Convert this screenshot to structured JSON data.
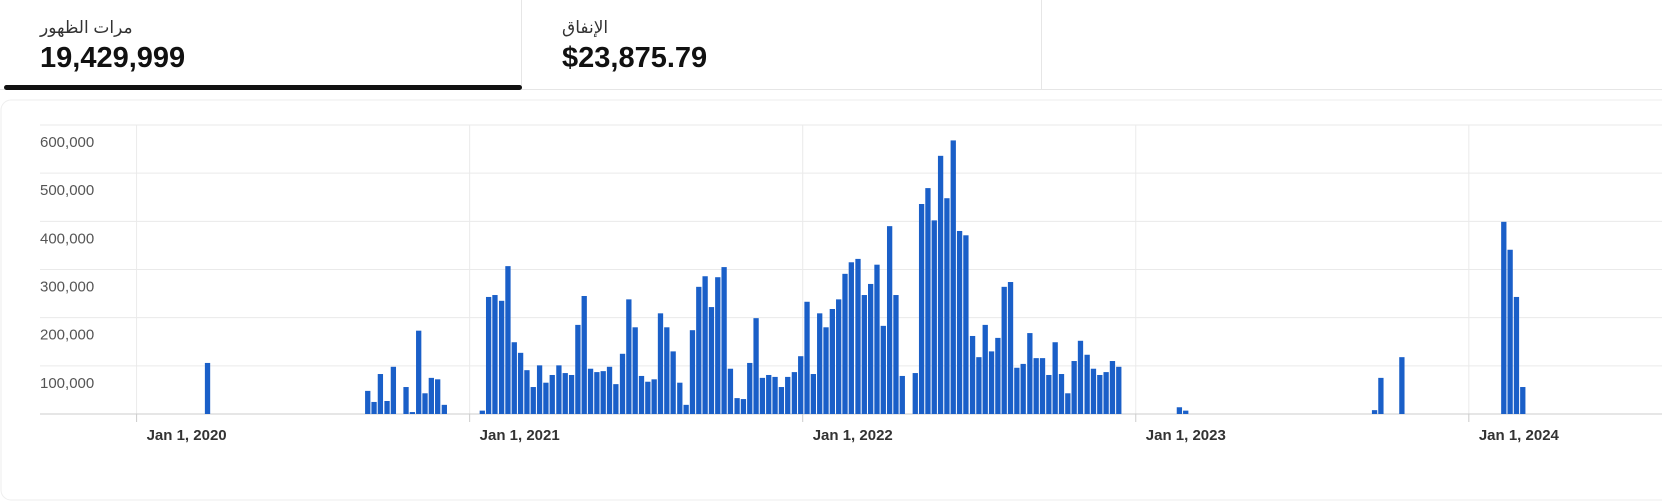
{
  "tabs": [
    {
      "label": "مرات الظهور",
      "value": "19,429,999"
    },
    {
      "label": "الإنفاق",
      "value": "$23,875.79"
    }
  ],
  "chart_data": {
    "type": "bar",
    "color": "#1a5fc8",
    "grid": true,
    "xlim": [
      2019.71,
      2024.58
    ],
    "xticks": [
      {
        "value": 2020,
        "label": "Jan 1, 2020"
      },
      {
        "value": 2021,
        "label": "Jan 1, 2021"
      },
      {
        "value": 2022,
        "label": "Jan 1, 2022"
      },
      {
        "value": 2023,
        "label": "Jan 1, 2023"
      },
      {
        "value": 2024,
        "label": "Jan 1, 2024"
      }
    ],
    "ylim": [
      0,
      600000
    ],
    "yticks": [
      {
        "value": 100000,
        "label": "100,000"
      },
      {
        "value": 200000,
        "label": "200,000"
      },
      {
        "value": 300000,
        "label": "300,000"
      },
      {
        "value": 400000,
        "label": "400,000"
      },
      {
        "value": 500000,
        "label": "500,000"
      },
      {
        "value": 600000,
        "label": "600,000"
      }
    ],
    "x": [
      2020.213,
      2020.694,
      2020.713,
      2020.732,
      2020.752,
      2020.771,
      2020.809,
      2020.828,
      2020.847,
      2020.866,
      2020.885,
      2020.904,
      2020.924,
      2021.038,
      2021.057,
      2021.076,
      2021.096,
      2021.115,
      2021.134,
      2021.153,
      2021.172,
      2021.191,
      2021.21,
      2021.229,
      2021.248,
      2021.268,
      2021.287,
      2021.306,
      2021.325,
      2021.344,
      2021.363,
      2021.382,
      2021.401,
      2021.42,
      2021.439,
      2021.459,
      2021.478,
      2021.497,
      2021.516,
      2021.535,
      2021.554,
      2021.573,
      2021.592,
      2021.611,
      2021.631,
      2021.65,
      2021.669,
      2021.688,
      2021.707,
      2021.726,
      2021.745,
      2021.764,
      2021.783,
      2021.803,
      2021.822,
      2021.841,
      2021.86,
      2021.879,
      2021.898,
      2021.917,
      2021.936,
      2021.955,
      2021.975,
      2021.994,
      2022.013,
      2022.032,
      2022.051,
      2022.07,
      2022.089,
      2022.108,
      2022.127,
      2022.146,
      2022.166,
      2022.185,
      2022.204,
      2022.223,
      2022.242,
      2022.261,
      2022.28,
      2022.299,
      2022.338,
      2022.357,
      2022.376,
      2022.395,
      2022.414,
      2022.433,
      2022.452,
      2022.471,
      2022.49,
      2022.51,
      2022.529,
      2022.548,
      2022.567,
      2022.586,
      2022.605,
      2022.624,
      2022.643,
      2022.662,
      2022.682,
      2022.701,
      2022.72,
      2022.739,
      2022.758,
      2022.777,
      2022.796,
      2022.815,
      2022.834,
      2022.854,
      2022.873,
      2022.892,
      2022.911,
      2022.93,
      2022.949,
      2023.131,
      2023.15,
      2023.717,
      2023.736,
      2023.799,
      2024.105,
      2024.124,
      2024.143,
      2024.162
    ],
    "values": [
      106000,
      48000,
      25000,
      83000,
      27000,
      98000,
      56000,
      4000,
      173000,
      43000,
      75000,
      72000,
      19000,
      7000,
      243000,
      247000,
      235000,
      307000,
      149000,
      127000,
      91000,
      56000,
      101000,
      65000,
      81000,
      101000,
      85000,
      81000,
      185000,
      245000,
      94000,
      87000,
      89000,
      98000,
      62000,
      125000,
      238000,
      180000,
      79000,
      67000,
      72000,
      209000,
      180000,
      130000,
      65000,
      19000,
      174000,
      264000,
      286000,
      222000,
      284000,
      305000,
      94000,
      33000,
      31000,
      106000,
      199000,
      75000,
      81000,
      77000,
      56000,
      77000,
      87000,
      120000,
      233000,
      83000,
      209000,
      180000,
      218000,
      238000,
      291000,
      315000,
      322000,
      247000,
      270000,
      310000,
      183000,
      390000,
      247000,
      79000,
      85000,
      436000,
      469000,
      402000,
      536000,
      448000,
      568000,
      380000,
      371000,
      162000,
      118000,
      185000,
      130000,
      158000,
      264000,
      274000,
      96000,
      104000,
      168000,
      116000,
      116000,
      81000,
      149000,
      83000,
      43000,
      110000,
      152000,
      123000,
      94000,
      81000,
      87000,
      110000,
      98000,
      14000,
      7000,
      8000,
      75000,
      118000,
      399000,
      341000,
      243000,
      56000
    ]
  }
}
